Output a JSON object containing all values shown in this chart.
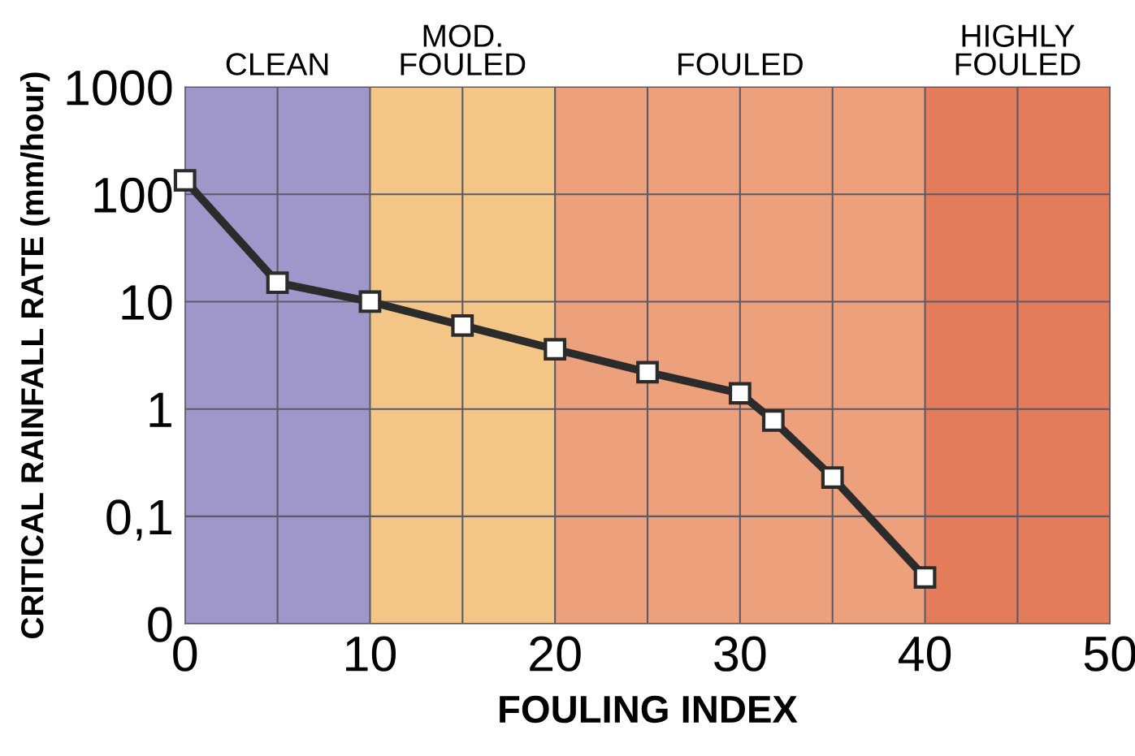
{
  "chart_data": {
    "type": "line",
    "xlabel": "FOULING INDEX",
    "ylabel": "CRITICAL RAINFALL RATE (mm/hour)",
    "log": "y",
    "grid": true,
    "marker": "square",
    "line_style": "solid",
    "xlim": [
      0,
      50
    ],
    "ylim": [
      0.01,
      1000
    ],
    "xticks": [
      0,
      {
        "value": 5,
        "label": null
      },
      10,
      {
        "value": 15,
        "label": null
      },
      20,
      {
        "value": 25,
        "label": null
      },
      30,
      {
        "value": 35,
        "label": null
      },
      40,
      {
        "value": 45,
        "label": null
      },
      50
    ],
    "yticks": [
      {
        "value": 0.01,
        "label": "0"
      },
      {
        "value": 0.1,
        "label": "0,1"
      },
      1,
      10,
      100,
      1000
    ],
    "series": [
      {
        "color": "#2b2b2b",
        "x": [
          0,
          5,
          10,
          15,
          20,
          25,
          30,
          31.8,
          35,
          40
        ],
        "values": [
          135,
          15,
          10,
          6,
          3.6,
          2.2,
          1.4,
          0.78,
          0.23,
          0.027
        ]
      }
    ],
    "bands": [
      {
        "axis": "x",
        "from": 0,
        "to": 10,
        "label": "CLEAN",
        "color": "#9f97ca"
      },
      {
        "axis": "x",
        "from": 10,
        "to": 20,
        "label": "MOD.\nFOULED",
        "color": "#f3c688"
      },
      {
        "axis": "x",
        "from": 20,
        "to": 40,
        "label": "FOULED",
        "color": "#eda07c"
      },
      {
        "axis": "x",
        "from": 40,
        "to": 50,
        "label": "HIGHLY\nFOULED",
        "color": "#e27c5a"
      }
    ]
  }
}
